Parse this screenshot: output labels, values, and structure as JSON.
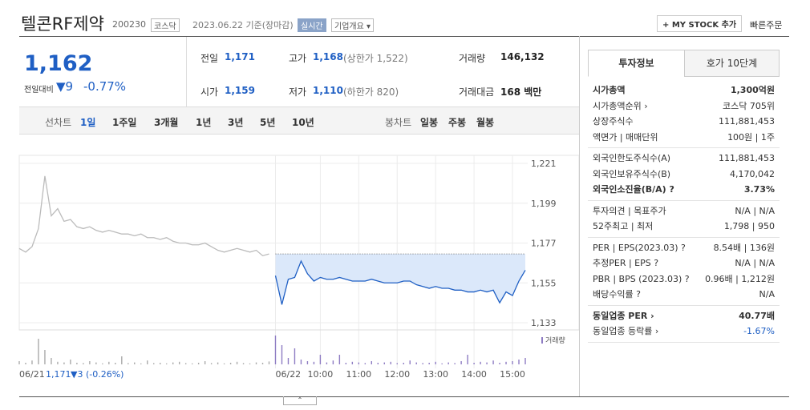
{
  "header": {
    "title": "텔콘RF제약",
    "code": "200230",
    "market": "코스닥",
    "date": "2023.06.22 기준(장마감)",
    "realtime": "실시간",
    "company": "기업개요 ▾",
    "mystock": "+ MY STOCK 추가",
    "quick": "빠른주문"
  },
  "price": {
    "current": "1,162",
    "change_label": "전일대비",
    "change": "▼9",
    "rate": "-0.77%"
  },
  "stats": [
    {
      "label": "전일",
      "value": "1,171"
    },
    {
      "label": "고가",
      "value": "1,168",
      "extra": "(상한가 1,522)"
    },
    {
      "label": "거래량",
      "value": "146,132"
    },
    {
      "label": "시가",
      "value": "1,159"
    },
    {
      "label": "저가",
      "value": "1,110",
      "extra": "(하한가 820)"
    },
    {
      "label": "거래대금",
      "value": "168 백만"
    }
  ],
  "tabs": {
    "line_label": "선차트",
    "line": [
      "1일",
      "1주일",
      "3개월",
      "1년",
      "3년",
      "5년",
      "10년"
    ],
    "candle_label": "봉차트",
    "candle": [
      "일봉",
      "주봉",
      "월봉"
    ]
  },
  "chart_data": {
    "type": "line",
    "ylim": [
      1133,
      1221
    ],
    "yticks": [
      {
        "value": 1221,
        "label": "1,221"
      },
      {
        "value": 1199,
        "label": "1,199"
      },
      {
        "value": 1177,
        "label": "1,177"
      },
      {
        "value": 1155,
        "label": "1,155"
      },
      {
        "value": 1133,
        "label": "1,133"
      }
    ],
    "xlim": [
      0,
      79
    ],
    "xticks": [
      {
        "value": 0,
        "label": "06/21"
      },
      {
        "value": 40,
        "label": "06/22"
      },
      {
        "value": 47,
        "label": "10:00"
      },
      {
        "value": 53,
        "label": "11:00"
      },
      {
        "value": 59,
        "label": "12:00"
      },
      {
        "value": 65,
        "label": "13:00"
      },
      {
        "value": 71,
        "label": "14:00"
      },
      {
        "value": 77,
        "label": "15:00"
      }
    ],
    "baseline": 1171,
    "series": [
      {
        "color": "#bbbbbb",
        "values": [
          1174,
          1172,
          1175,
          1185,
          1214,
          1192,
          1196,
          1189,
          1190,
          1186,
          1185,
          1186,
          1184,
          1183,
          1184,
          1183,
          1182,
          1182,
          1181,
          1182,
          1180,
          1180,
          1179,
          1180,
          1178,
          1177,
          1177,
          1176,
          1176,
          1177,
          1175,
          1173,
          1172,
          1173,
          1174,
          1173,
          1172,
          1173,
          1170,
          1171,
          null,
          null,
          null,
          null,
          null,
          null,
          null,
          null,
          null,
          null,
          null,
          null,
          null,
          null,
          null,
          null,
          null,
          null,
          null,
          null,
          null,
          null,
          null,
          null,
          null,
          null,
          null,
          null,
          null,
          null,
          null,
          null,
          null,
          null,
          null,
          null,
          null,
          null,
          null,
          null
        ]
      },
      {
        "color": "#1f5fc4",
        "fill": "#dbe8fa",
        "values": [
          null,
          null,
          null,
          null,
          null,
          null,
          null,
          null,
          null,
          null,
          null,
          null,
          null,
          null,
          null,
          null,
          null,
          null,
          null,
          null,
          null,
          null,
          null,
          null,
          null,
          null,
          null,
          null,
          null,
          null,
          null,
          null,
          null,
          null,
          null,
          null,
          null,
          null,
          null,
          null,
          1159,
          1143,
          1157,
          1158,
          1167,
          1160,
          1156,
          1158,
          1157,
          1157,
          1158,
          1157,
          1156,
          1156,
          1156,
          1157,
          1156,
          1155,
          1155,
          1155,
          1156,
          1156,
          1154,
          1153,
          1152,
          1153,
          1152,
          1152,
          1151,
          1151,
          1150,
          1150,
          1151,
          1150,
          1151,
          1144,
          1150,
          1148,
          1156,
          1162
        ]
      }
    ],
    "volume": {
      "name": "거래량",
      "ylim": [
        0,
        100
      ],
      "colors": [
        "#aaaaaa",
        "#8e7cc3"
      ],
      "values": [
        10,
        5,
        12,
        80,
        45,
        20,
        8,
        6,
        15,
        5,
        4,
        10,
        6,
        3,
        8,
        5,
        25,
        4,
        6,
        3,
        12,
        4,
        5,
        3,
        6,
        8,
        4,
        3,
        5,
        10,
        4,
        6,
        3,
        5,
        8,
        4,
        3,
        6,
        5,
        9,
        90,
        60,
        20,
        50,
        15,
        10,
        8,
        30,
        6,
        12,
        30,
        5,
        8,
        6,
        4,
        10,
        5,
        6,
        8,
        4,
        5,
        12,
        6,
        4,
        5,
        8,
        3,
        6,
        4,
        10,
        30,
        5,
        8,
        6,
        12,
        5,
        8,
        10,
        15,
        20
      ]
    },
    "footer_value": "1,171",
    "footer_change": "▼3 (-0.26%)"
  },
  "info": {
    "tabs": [
      "투자정보",
      "호가 10단계"
    ],
    "groups": [
      [
        {
          "label": "시가총액",
          "value": "1,300억원",
          "bold": true
        },
        {
          "label": "시가총액순위 ›",
          "value": "코스닥 705위"
        },
        {
          "label": "상장주식수",
          "value": "111,881,453"
        },
        {
          "label": "액면가 | 매매단위",
          "value": "100원 | 1주"
        }
      ],
      [
        {
          "label": "외국인한도주식수(A)",
          "value": "111,881,453"
        },
        {
          "label": "외국인보유주식수(B)",
          "value": "4,170,042"
        },
        {
          "label": "외국인소진율(B/A) ?",
          "value": "3.73%",
          "bold": true
        }
      ],
      [
        {
          "label": "투자의견 | 목표주가",
          "value": "N/A | N/A"
        },
        {
          "label": "52주최고 | 최저",
          "value": "1,798 | 950"
        }
      ],
      [
        {
          "label": "PER | EPS(2023.03) ?",
          "value": "8.54배 | 136원"
        },
        {
          "label": "추정PER | EPS ?",
          "value": "N/A | N/A"
        },
        {
          "label": "PBR | BPS (2023.03) ?",
          "value": "0.96배 | 1,212원"
        },
        {
          "label": "배당수익률 ?",
          "value": "N/A"
        }
      ],
      [
        {
          "label": "동일업종 PER ›",
          "value": "40.77배",
          "bold": true
        },
        {
          "label": "동일업종 등락률 ›",
          "value": "-1.67%",
          "blue": true
        }
      ]
    ]
  }
}
